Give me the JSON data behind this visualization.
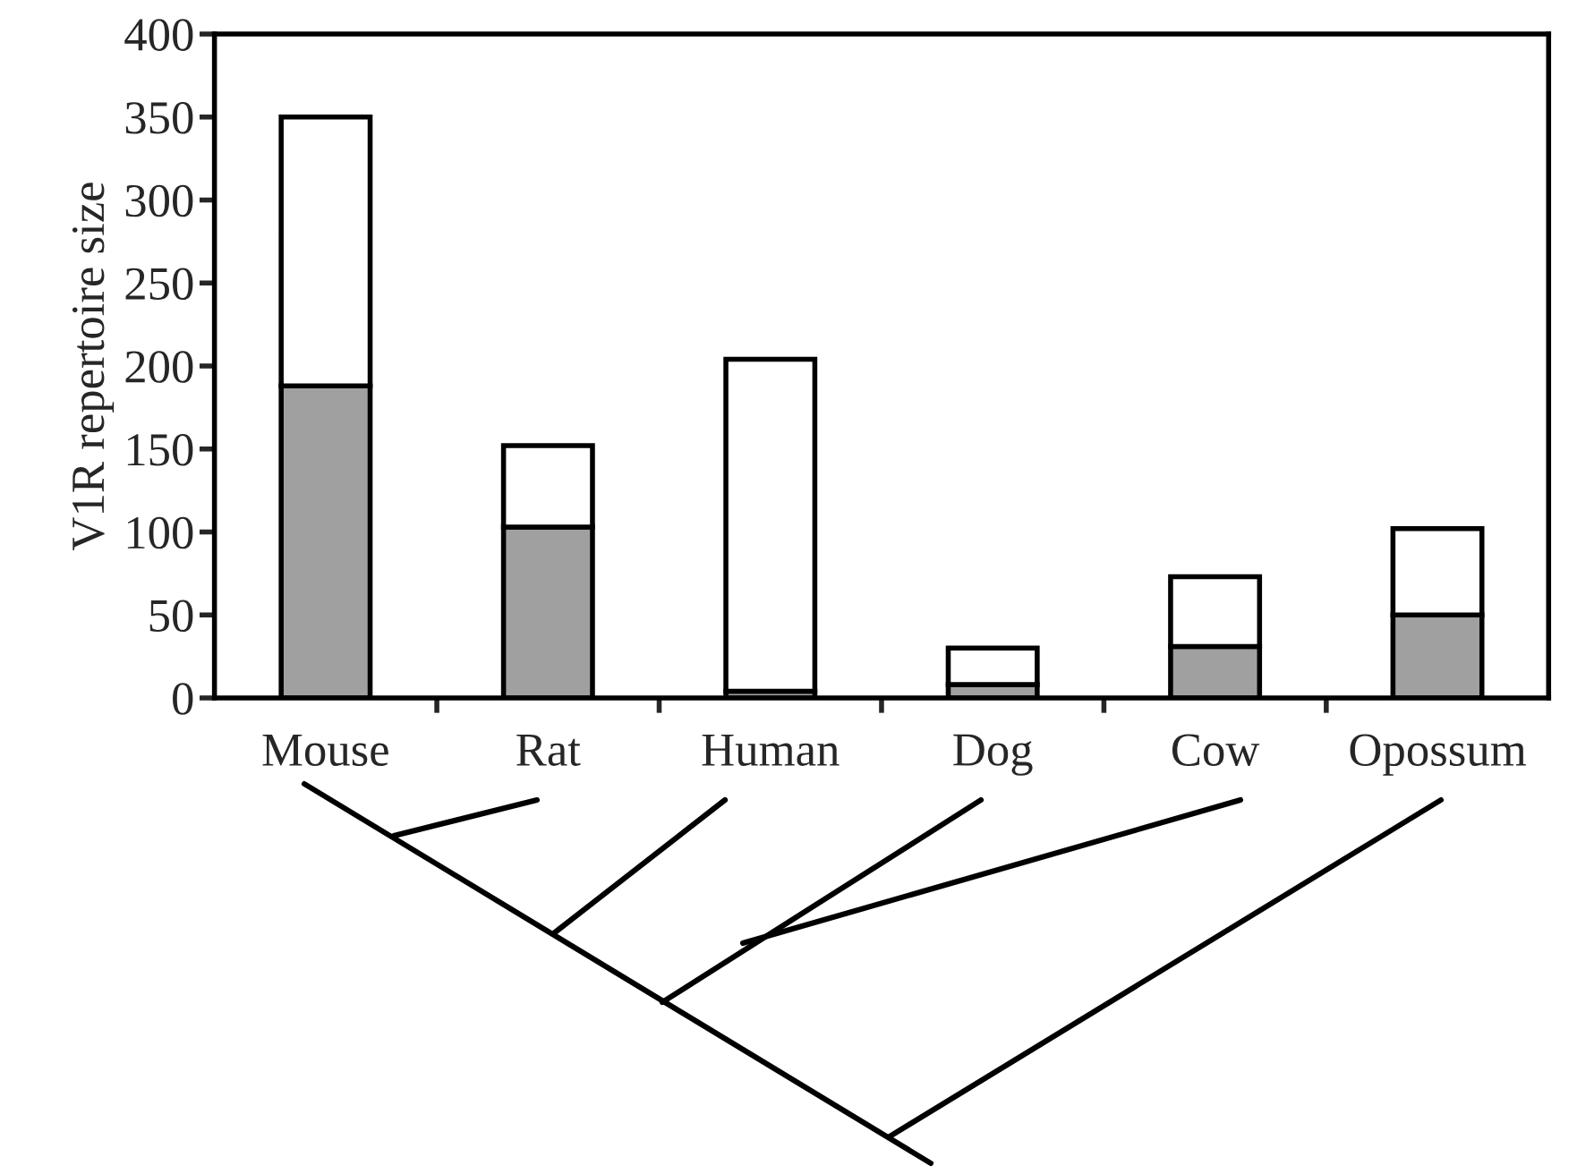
{
  "chart_data": {
    "type": "bar",
    "stacked": true,
    "ylabel": "V1R repertoire size",
    "categories": [
      "Mouse",
      "Rat",
      "Human",
      "Dog",
      "Cow",
      "Opossum"
    ],
    "series": [
      {
        "color": "#a0a0a0",
        "values": [
          188,
          103,
          4,
          8,
          31,
          50
        ]
      },
      {
        "color": "#ffffff",
        "values": [
          162,
          49,
          200,
          22,
          42,
          52
        ]
      }
    ],
    "ylim": [
      0,
      400
    ],
    "yticks": [
      0,
      50,
      100,
      150,
      200,
      250,
      300,
      350,
      400
    ],
    "grid": false,
    "legend": false
  }
}
